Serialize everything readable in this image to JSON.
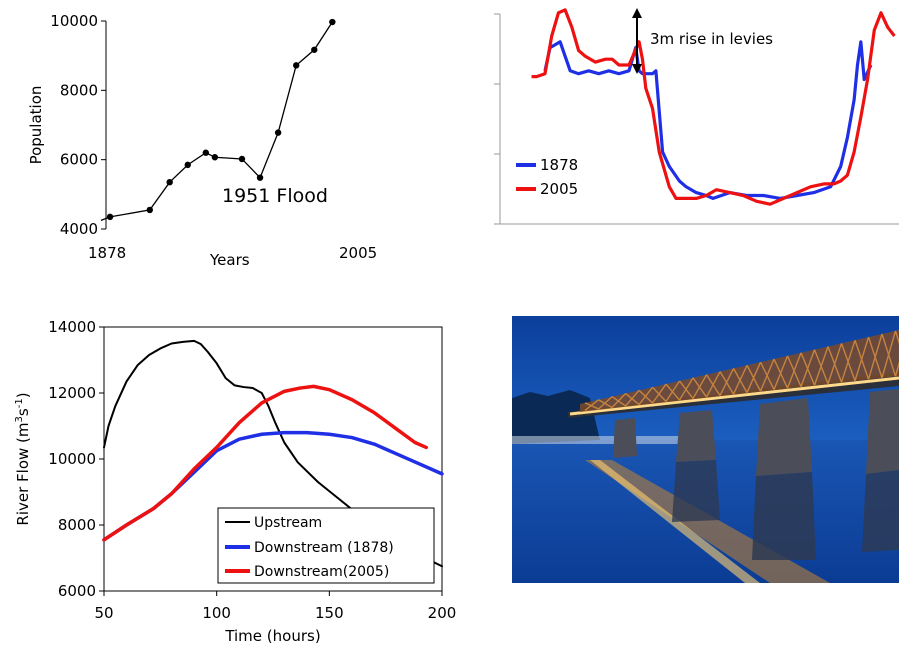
{
  "colors": {
    "blue": "#1f2fe6",
    "red": "#ee1111",
    "black": "#000000"
  },
  "chart_data": [
    {
      "id": "population",
      "type": "line",
      "xlabel": "Years",
      "ylabel": "Population",
      "x_tick_labels": [
        "1878",
        "2005"
      ],
      "y_ticks": [
        4000,
        6000,
        8000,
        10000
      ],
      "y_tick_labels": [
        "4000",
        "6000",
        "8000",
        "10000"
      ],
      "ylim": [
        4000,
        10000
      ],
      "xlim": [
        1873,
        2008
      ],
      "annotation": {
        "text": "1951 Flood",
        "x": 1950,
        "y": 4950
      },
      "series": [
        {
          "x": [
            1873,
            1878,
            1900,
            1911,
            1921,
            1931,
            1936,
            1951,
            1961,
            1971,
            1981,
            1991,
            2001
          ],
          "y": [
            4250,
            4350,
            4550,
            5350,
            5850,
            6200,
            6070,
            6020,
            5480,
            6780,
            8720,
            9170,
            9970
          ],
          "markers": [
            false,
            true,
            true,
            true,
            true,
            true,
            true,
            true,
            true,
            true,
            true,
            true,
            true
          ]
        }
      ]
    },
    {
      "id": "cross-section",
      "type": "line",
      "annotation": {
        "text": "3m rise in levies"
      },
      "legend_position": "center-left",
      "series": [
        {
          "name": "1878",
          "color": "#1f2fe6",
          "x": [
            0.0,
            1.5,
            3,
            4.5,
            6,
            7.5,
            10,
            13,
            16,
            19,
            22,
            25,
            27,
            28,
            29,
            31,
            32,
            33,
            35,
            37,
            40,
            42,
            45,
            48,
            50,
            55,
            60,
            65,
            70,
            75,
            80,
            85,
            88,
            90,
            92,
            93,
            94,
            95,
            97
          ],
          "y": [
            48,
            56,
            57,
            58,
            53,
            48,
            47,
            48,
            47,
            48,
            47,
            48,
            56,
            48,
            47,
            47,
            47,
            48,
            20,
            15,
            10,
            8,
            6,
            5,
            4,
            6,
            5,
            5,
            4,
            5,
            6,
            8,
            15,
            25,
            38,
            50,
            58,
            45,
            50
          ]
        },
        {
          "name": "2005",
          "color": "#ee1111",
          "x": [
            -4,
            -2.5,
            0,
            2,
            4,
            6,
            8,
            10,
            12,
            15,
            18,
            20,
            22,
            25,
            28,
            29,
            30,
            32,
            34,
            37,
            39,
            42,
            45,
            48,
            51,
            55,
            59,
            63,
            67,
            71,
            75,
            79,
            83,
            86,
            88,
            90,
            92,
            94,
            96,
            98,
            100,
            102,
            104
          ],
          "y": [
            46,
            46,
            47,
            60,
            68,
            69,
            63,
            55,
            53,
            51,
            52,
            52,
            50,
            50,
            58,
            52,
            42,
            35,
            20,
            8,
            4,
            4,
            4,
            5,
            7,
            6,
            5,
            3,
            2,
            4,
            6,
            8,
            9,
            9,
            10,
            12,
            20,
            32,
            45,
            62,
            68,
            63,
            60
          ]
        }
      ]
    },
    {
      "id": "river-flow",
      "type": "line",
      "xlabel": "Time (hours)",
      "ylabel": "River Flow (m3s-1)",
      "x_ticks": [
        50,
        100,
        150,
        200
      ],
      "x_tick_labels": [
        "50",
        "100",
        "150",
        "200"
      ],
      "y_ticks": [
        6000,
        8000,
        10000,
        12000,
        14000
      ],
      "y_tick_labels": [
        "6000",
        "8000",
        "10000",
        "12000",
        "14000"
      ],
      "xlim": [
        50,
        200
      ],
      "ylim": [
        6000,
        14000
      ],
      "legend_position": "bottom-right",
      "series": [
        {
          "name": "Upstream",
          "color": "#000000",
          "x": [
            50,
            52,
            55,
            60,
            65,
            70,
            75,
            80,
            85,
            90,
            93,
            96,
            100,
            104,
            108,
            112,
            116,
            120,
            123,
            126,
            130,
            136,
            145,
            155,
            165,
            175,
            185,
            200
          ],
          "y": [
            10350,
            11000,
            11600,
            12350,
            12850,
            13150,
            13350,
            13500,
            13550,
            13580,
            13480,
            13250,
            12900,
            12450,
            12230,
            12180,
            12150,
            12000,
            11600,
            11100,
            10500,
            9900,
            9300,
            8750,
            8200,
            7700,
            7250,
            6750
          ]
        },
        {
          "name": "Downstream (1878)",
          "color": "#1f2fe6",
          "x": [
            50,
            60,
            72,
            80,
            90,
            100,
            110,
            120,
            130,
            140,
            150,
            160,
            170,
            180,
            190,
            200
          ],
          "y": [
            7550,
            8000,
            8500,
            8950,
            9600,
            10250,
            10600,
            10750,
            10800,
            10800,
            10750,
            10650,
            10450,
            10150,
            9850,
            9550
          ]
        },
        {
          "name": "Downstream(2005)",
          "color": "#ee1111",
          "x": [
            50,
            60,
            72,
            80,
            90,
            100,
            110,
            120,
            130,
            137,
            143,
            150,
            160,
            170,
            180,
            188,
            193
          ],
          "y": [
            7550,
            8000,
            8500,
            8950,
            9700,
            10350,
            11100,
            11700,
            12050,
            12150,
            12200,
            12100,
            11800,
            11400,
            10900,
            10500,
            10350
          ]
        }
      ]
    }
  ],
  "photo": {
    "subject": "bridge-at-dusk"
  }
}
